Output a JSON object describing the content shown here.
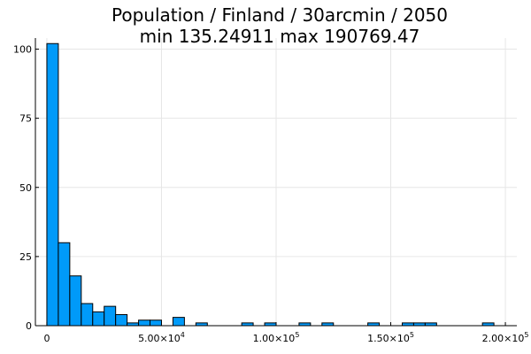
{
  "chart_data": {
    "type": "bar",
    "title_lines": [
      "Population / Finland / 30arcmin / 2050",
      "min 135.24911  max 190769.47"
    ],
    "xlabel": "",
    "ylabel": "",
    "xlim": [
      -5000,
      205000
    ],
    "ylim": [
      0,
      104
    ],
    "bin_width": 5000,
    "bins": [
      {
        "x0": 0,
        "x1": 5000,
        "count": 102
      },
      {
        "x0": 5000,
        "x1": 10000,
        "count": 30
      },
      {
        "x0": 10000,
        "x1": 15000,
        "count": 18
      },
      {
        "x0": 15000,
        "x1": 20000,
        "count": 8
      },
      {
        "x0": 20000,
        "x1": 25000,
        "count": 5
      },
      {
        "x0": 25000,
        "x1": 30000,
        "count": 7
      },
      {
        "x0": 30000,
        "x1": 35000,
        "count": 4
      },
      {
        "x0": 35000,
        "x1": 40000,
        "count": 1
      },
      {
        "x0": 40000,
        "x1": 45000,
        "count": 2
      },
      {
        "x0": 45000,
        "x1": 50000,
        "count": 2
      },
      {
        "x0": 50000,
        "x1": 55000,
        "count": 0
      },
      {
        "x0": 55000,
        "x1": 60000,
        "count": 3
      },
      {
        "x0": 60000,
        "x1": 65000,
        "count": 0
      },
      {
        "x0": 65000,
        "x1": 70000,
        "count": 1
      },
      {
        "x0": 85000,
        "x1": 90000,
        "count": 1
      },
      {
        "x0": 95000,
        "x1": 100000,
        "count": 1
      },
      {
        "x0": 110000,
        "x1": 115000,
        "count": 1
      },
      {
        "x0": 120000,
        "x1": 125000,
        "count": 1
      },
      {
        "x0": 140000,
        "x1": 145000,
        "count": 1
      },
      {
        "x0": 155000,
        "x1": 160000,
        "count": 1
      },
      {
        "x0": 160000,
        "x1": 165000,
        "count": 1
      },
      {
        "x0": 165000,
        "x1": 170000,
        "count": 1
      },
      {
        "x0": 190000,
        "x1": 195000,
        "count": 1
      }
    ],
    "x_ticks": [
      {
        "value": 0,
        "label": "0",
        "exp": ""
      },
      {
        "value": 50000,
        "label": "5.00×10",
        "exp": "4"
      },
      {
        "value": 100000,
        "label": "1.00×10",
        "exp": "5"
      },
      {
        "value": 150000,
        "label": "1.50×10",
        "exp": "5"
      },
      {
        "value": 200000,
        "label": "2.00×10",
        "exp": "5"
      }
    ],
    "y_ticks": [
      {
        "value": 0,
        "label": "0"
      },
      {
        "value": 25,
        "label": "25"
      },
      {
        "value": 50,
        "label": "50"
      },
      {
        "value": 75,
        "label": "75"
      },
      {
        "value": 100,
        "label": "100"
      }
    ],
    "grid": true,
    "legend": "none",
    "colors": {
      "bar": "#009af9",
      "grid": "#e6e6e6",
      "axis": "#000000"
    }
  }
}
